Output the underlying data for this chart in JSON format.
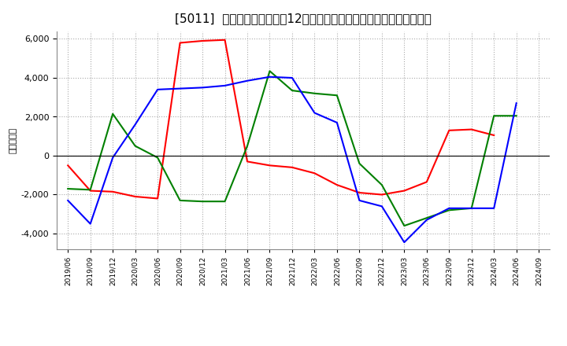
{
  "title": "[5011]  キャッシュフローの12か月移動合計の対前年同期増減額の推移",
  "ylabel": "（百万円）",
  "xlabels": [
    "2019/06",
    "2019/09",
    "2019/12",
    "2020/03",
    "2020/06",
    "2020/09",
    "2020/12",
    "2021/03",
    "2021/06",
    "2021/09",
    "2021/12",
    "2022/03",
    "2022/06",
    "2022/09",
    "2022/12",
    "2023/03",
    "2023/06",
    "2023/09",
    "2023/12",
    "2024/03",
    "2024/06",
    "2024/09"
  ],
  "operating_cf": [
    -500,
    -1800,
    -1850,
    -2100,
    -2200,
    5800,
    5900,
    5950,
    -300,
    -500,
    -600,
    -900,
    -1500,
    -1900,
    -2000,
    -1800,
    -1350,
    1300,
    1350,
    1050,
    null,
    null
  ],
  "investing_cf": [
    -1700,
    -1750,
    2150,
    500,
    -100,
    -2300,
    -2350,
    -2350,
    500,
    4350,
    3350,
    3200,
    3100,
    -400,
    -1500,
    -3600,
    -3200,
    -2800,
    -2700,
    2050,
    2050,
    null
  ],
  "free_cf": [
    -2300,
    -3500,
    -100,
    1600,
    3400,
    3450,
    3500,
    3600,
    3850,
    4050,
    4000,
    2200,
    1700,
    -2300,
    -2600,
    -4450,
    -3300,
    -2700,
    -2700,
    -2700,
    2700,
    null
  ],
  "operating_color": "#ff0000",
  "investing_color": "#008000",
  "free_color": "#0000ff",
  "ylim": [
    -4800,
    6400
  ],
  "yticks": [
    -4000,
    -2000,
    0,
    2000,
    4000,
    6000
  ],
  "bg_color": "#ffffff",
  "grid_color": "#aaaaaa",
  "title_fontsize": 11
}
